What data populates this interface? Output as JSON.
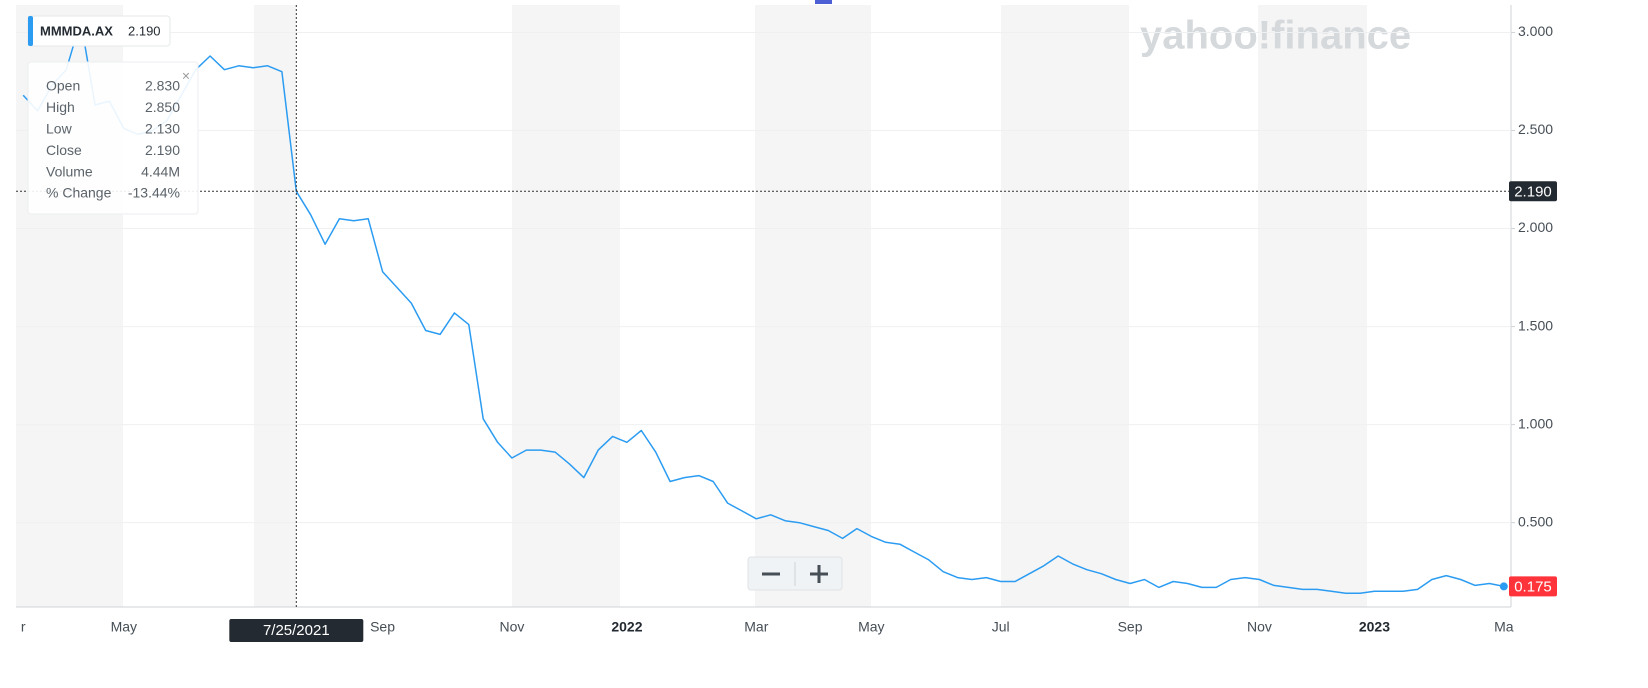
{
  "chart_data": {
    "type": "line",
    "watermark": "yahoo!finance",
    "categories": [
      "r",
      null,
      null,
      null,
      null,
      null,
      null,
      "May",
      null,
      null,
      null,
      null,
      null,
      null,
      null,
      null,
      null,
      null,
      null,
      "7/25/2021",
      null,
      null,
      null,
      null,
      null,
      "Sep",
      null,
      null,
      null,
      null,
      null,
      null,
      null,
      null,
      "Nov",
      null,
      null,
      null,
      null,
      null,
      null,
      null,
      "2022",
      null,
      null,
      null,
      null,
      null,
      null,
      null,
      null,
      "Mar",
      null,
      null,
      null,
      null,
      null,
      null,
      null,
      "May",
      null,
      null,
      null,
      null,
      null,
      null,
      null,
      null,
      "Jul",
      null,
      null,
      null,
      null,
      null,
      null,
      null,
      null,
      "Sep",
      null,
      null,
      null,
      null,
      null,
      null,
      null,
      null,
      "Nov",
      null,
      null,
      null,
      null,
      null,
      null,
      null,
      "2023",
      null,
      null,
      null,
      null,
      null,
      null,
      null,
      null,
      "Ma"
    ],
    "series": [
      {
        "name": "MMMDA.AX",
        "color": "#2b9cf2",
        "values": [
          2.68,
          2.6,
          2.73,
          2.81,
          3.06,
          2.63,
          2.65,
          2.51,
          2.48,
          2.5,
          2.55,
          2.68,
          2.81,
          2.88,
          2.81,
          2.83,
          2.82,
          2.83,
          2.8,
          2.19,
          2.07,
          1.92,
          2.05,
          2.04,
          2.05,
          1.78,
          1.7,
          1.62,
          1.48,
          1.46,
          1.57,
          1.51,
          1.03,
          0.91,
          0.83,
          0.87,
          0.87,
          0.86,
          0.8,
          0.73,
          0.87,
          0.94,
          0.91,
          0.97,
          0.86,
          0.71,
          0.73,
          0.74,
          0.71,
          0.6,
          0.56,
          0.52,
          0.54,
          0.51,
          0.5,
          0.48,
          0.46,
          0.42,
          0.47,
          0.43,
          0.4,
          0.39,
          0.35,
          0.31,
          0.25,
          0.22,
          0.21,
          0.22,
          0.2,
          0.2,
          0.24,
          0.28,
          0.33,
          0.29,
          0.26,
          0.24,
          0.21,
          0.19,
          0.21,
          0.17,
          0.2,
          0.19,
          0.17,
          0.17,
          0.21,
          0.22,
          0.21,
          0.18,
          0.17,
          0.16,
          0.16,
          0.15,
          0.14,
          0.14,
          0.15,
          0.15,
          0.15,
          0.16,
          0.21,
          0.23,
          0.21,
          0.18,
          0.19,
          0.175
        ]
      }
    ],
    "legend_value": "2.190",
    "ylim": [
      0.07,
      3.14
    ],
    "yticks": [
      {
        "value": 0.5,
        "label": "0.500"
      },
      {
        "value": 1,
        "label": "1.000"
      },
      {
        "value": 1.5,
        "label": "1.500"
      },
      {
        "value": 2,
        "label": "2.000"
      },
      {
        "value": 2.5,
        "label": "2.500"
      },
      {
        "value": 3,
        "label": "3.000"
      }
    ],
    "grid": true,
    "markers": [
      {
        "value": 2.19,
        "label": "2.190",
        "color": "#232a31"
      },
      {
        "value": 0.175,
        "label": "0.175",
        "color": "#ff333a"
      }
    ],
    "tooltip": [
      [
        "Open",
        "2.830"
      ],
      [
        "High",
        "2.850"
      ],
      [
        "Low",
        "2.130"
      ],
      [
        "Close",
        "2.190"
      ],
      [
        "Volume",
        "4.44M"
      ],
      [
        "% Change",
        "-13.44%"
      ]
    ]
  }
}
